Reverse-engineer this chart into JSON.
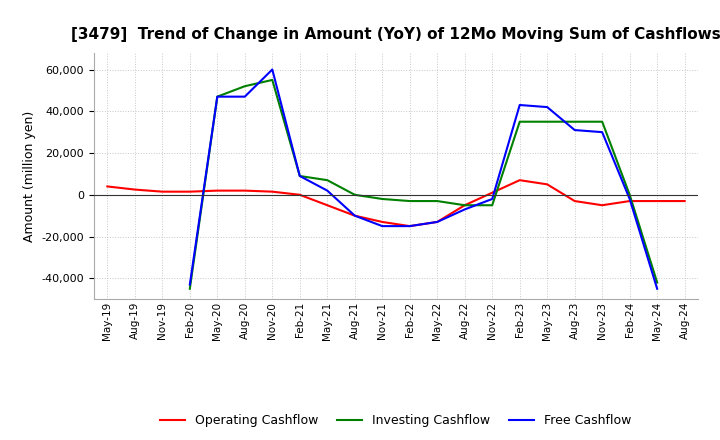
{
  "title": "[3479]  Trend of Change in Amount (YoY) of 12Mo Moving Sum of Cashflows",
  "ylabel": "Amount (million yen)",
  "ylim": [
    -50000,
    68000
  ],
  "yticks": [
    -40000,
    -20000,
    0,
    20000,
    40000,
    60000
  ],
  "x_labels": [
    "May-19",
    "Aug-19",
    "Nov-19",
    "Feb-20",
    "May-20",
    "Aug-20",
    "Nov-20",
    "Feb-21",
    "May-21",
    "Aug-21",
    "Nov-21",
    "Feb-22",
    "May-22",
    "Aug-22",
    "Nov-22",
    "Feb-23",
    "May-23",
    "Aug-23",
    "Nov-23",
    "Feb-24",
    "May-24",
    "Aug-24"
  ],
  "operating": [
    4000,
    2500,
    1500,
    1500,
    2000,
    2000,
    1500,
    0,
    -5000,
    -10000,
    -13000,
    -15000,
    -13000,
    -5000,
    1000,
    7000,
    5000,
    -3000,
    -5000,
    -3000,
    -3000,
    -3000
  ],
  "investing": [
    null,
    null,
    null,
    -45000,
    47000,
    52000,
    55000,
    9000,
    7000,
    0,
    -2000,
    -3000,
    -3000,
    -5000,
    -5000,
    35000,
    35000,
    35000,
    35000,
    0,
    -42000,
    null
  ],
  "free": [
    null,
    null,
    null,
    -43000,
    47000,
    47000,
    60000,
    9000,
    2000,
    -10000,
    -15000,
    -15000,
    -13000,
    -7000,
    -2000,
    43000,
    42000,
    31000,
    30000,
    -2000,
    -45000,
    null
  ],
  "operating_color": "#ff0000",
  "investing_color": "#008000",
  "free_color": "#0000ff",
  "bg_color": "#ffffff",
  "grid_color": "#c8c8c8"
}
